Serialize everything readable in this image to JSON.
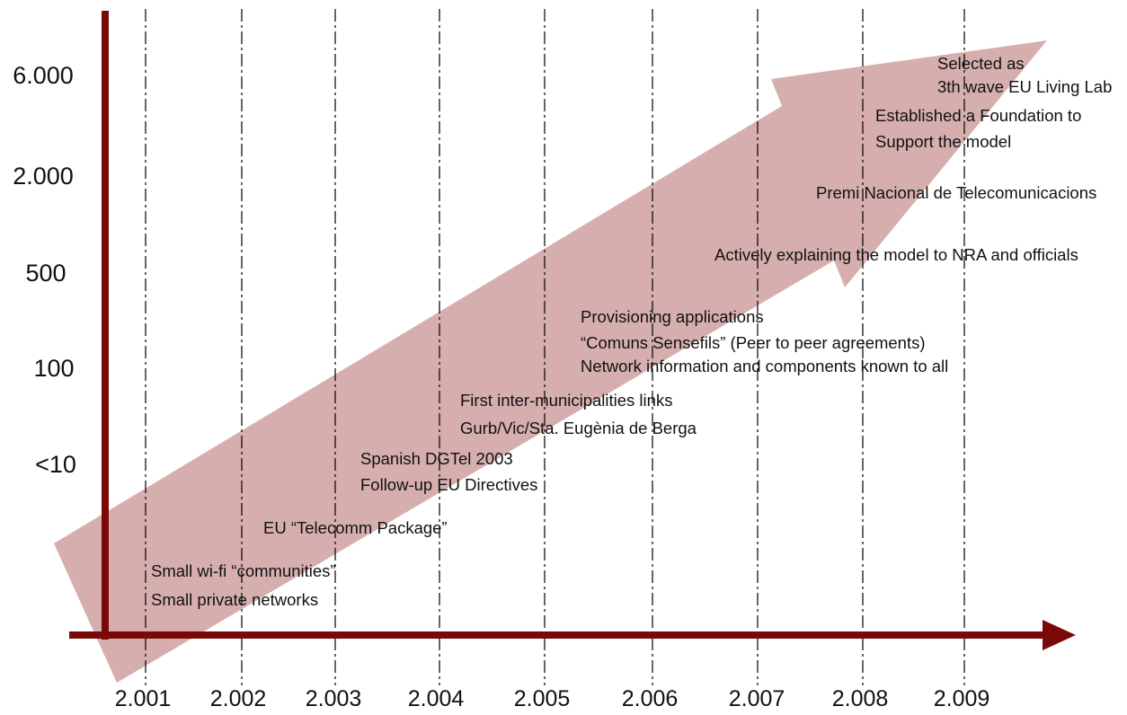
{
  "colors": {
    "axis": "#7a0a0a",
    "arrow_fill": "#d6aeae",
    "gridline": "#000000",
    "text": "#111111"
  },
  "y_axis": {
    "labels": [
      "6.000",
      "2.000",
      "500",
      "100",
      "<10"
    ]
  },
  "x_axis": {
    "labels": [
      "2.001",
      "2.002",
      "2.003",
      "2.004",
      "2.005",
      "2.006",
      "2.007",
      "2.008",
      "2.009"
    ]
  },
  "events": [
    {
      "year": "2.001",
      "lines": [
        "Small wi-fi “communities”",
        "Small private networks"
      ]
    },
    {
      "year": "2.002",
      "lines": [
        "EU “Telecomm Package”"
      ]
    },
    {
      "year": "2.003",
      "lines": [
        "Spanish DGTel 2003",
        "Follow-up EU Directives"
      ]
    },
    {
      "year": "2.004",
      "lines": [
        "First inter-municipalities links",
        "Gurb/Vic/Sta. Eugènia de Berga"
      ]
    },
    {
      "year": "2.005",
      "lines": [
        "Provisioning applications",
        "“Comuns Sensefils” (Peer to peer agreements)",
        "Network information and components known to all"
      ]
    },
    {
      "year": "2.007",
      "lines": [
        "Actively explaining the model to NRA and officials"
      ]
    },
    {
      "year": "2.008",
      "lines": [
        "Premi Nacional de Telecomunicacions"
      ]
    },
    {
      "year": "2.008",
      "lines": [
        "Established a Foundation to",
        "Support the model"
      ]
    },
    {
      "year": "2.009",
      "lines": [
        "Selected as",
        "3th wave EU Living Lab"
      ]
    }
  ]
}
